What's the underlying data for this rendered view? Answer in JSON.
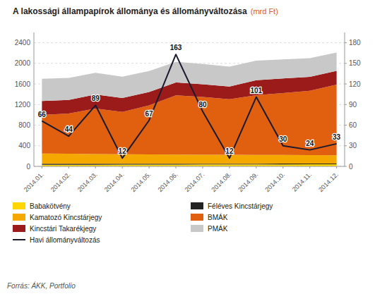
{
  "chart_data": {
    "type": "area",
    "stacked": true,
    "title": "A lakossági állampapírok állománya és állományváltozása",
    "subtitle": "(mrd Ft)",
    "source": "Forrás: ÁKK, Portfolio",
    "categories": [
      "2014.01.",
      "2014.02.",
      "2014.03.",
      "2014.04.",
      "2014.05.",
      "2014.06.",
      "2014.07.",
      "2014.08.",
      "2014.09.",
      "2014.10.",
      "2014.11.",
      "2014.12."
    ],
    "series": [
      {
        "name": "Babakötvény",
        "color": "#FFD700",
        "values": [
          30,
          31,
          32,
          33,
          34,
          35,
          36,
          37,
          38,
          39,
          40,
          41
        ]
      },
      {
        "name": "Féléves Kincstárjegy",
        "color": "#222222",
        "values": [
          20,
          20,
          19,
          18,
          18,
          17,
          16,
          16,
          15,
          15,
          14,
          14
        ]
      },
      {
        "name": "Kamatozó Kincstárjegy",
        "color": "#F5A800",
        "values": [
          200,
          195,
          190,
          185,
          182,
          178,
          175,
          172,
          170,
          168,
          165,
          162
        ]
      },
      {
        "name": "BMÁK",
        "color": "#E06010",
        "values": [
          750,
          780,
          880,
          820,
          950,
          1150,
          1120,
          1080,
          1160,
          1200,
          1250,
          1370
        ]
      },
      {
        "name": "Kincstári Takarékjegy",
        "color": "#9B1B1B",
        "values": [
          270,
          265,
          275,
          270,
          260,
          250,
          248,
          245,
          290,
          285,
          270,
          268
        ]
      },
      {
        "name": "PMÁK",
        "color": "#C8C8C8",
        "values": [
          430,
          425,
          420,
          415,
          408,
          400,
          392,
          385,
          378,
          370,
          362,
          355
        ]
      },
      {
        "name": "Havi állományváltozás",
        "type": "line",
        "axis": "y2",
        "color": "#1A1A2E",
        "data_labels": true,
        "values": [
          66,
          44,
          89,
          12,
          67,
          163,
          80,
          12,
          101,
          30,
          24,
          33
        ]
      }
    ],
    "ylim": [
      0,
      2600
    ],
    "yticks": [
      0,
      400,
      800,
      1200,
      1600,
      2000,
      2400
    ],
    "y2lim": [
      0,
      195
    ],
    "y2ticks": [
      0,
      30,
      60,
      90,
      120,
      150,
      180
    ],
    "grid": true,
    "legend": "bottom"
  }
}
